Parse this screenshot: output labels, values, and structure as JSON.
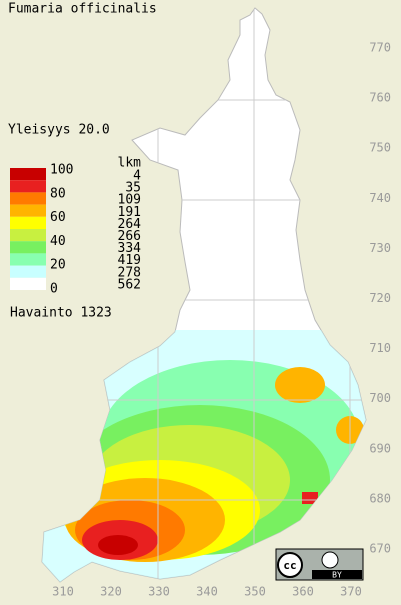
{
  "title": "Fumaria officinalis",
  "frequency": "Yleisyys  20.0",
  "legend": {
    "scale_labels": [
      100,
      80,
      60,
      40,
      20,
      0
    ],
    "count_header": "lkm",
    "counts": [
      4,
      35,
      109,
      191,
      264,
      266,
      334,
      419,
      278,
      562
    ],
    "colors": [
      "#c80000",
      "#e82020",
      "#ff7a00",
      "#ffb400",
      "#ffff00",
      "#c8f040",
      "#78f060",
      "#88ffb0",
      "#c8ffff",
      "#ffffff"
    ]
  },
  "observations": "Havainto 1323",
  "y_axis_labels": [
    770,
    760,
    750,
    740,
    730,
    720,
    710,
    700,
    690,
    680,
    670
  ],
  "x_axis_labels": [
    310,
    320,
    330,
    340,
    350,
    360,
    370
  ],
  "license": "BY"
}
